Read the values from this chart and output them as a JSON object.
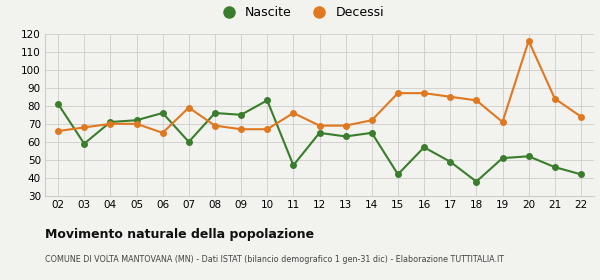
{
  "years": [
    "02",
    "03",
    "04",
    "05",
    "06",
    "07",
    "08",
    "09",
    "10",
    "11",
    "12",
    "13",
    "14",
    "15",
    "16",
    "17",
    "18",
    "19",
    "20",
    "21",
    "22"
  ],
  "nascite": [
    81,
    59,
    71,
    72,
    76,
    60,
    76,
    75,
    83,
    47,
    65,
    63,
    65,
    42,
    57,
    49,
    38,
    51,
    52,
    46,
    42
  ],
  "decessi": [
    66,
    68,
    70,
    70,
    65,
    79,
    69,
    67,
    67,
    76,
    69,
    69,
    72,
    87,
    87,
    85,
    83,
    71,
    116,
    84,
    74
  ],
  "nascite_color": "#3a7d2c",
  "decessi_color": "#e07820",
  "background_color": "#f2f2ee",
  "grid_color": "#cccccc",
  "title": "Movimento naturale della popolazione",
  "subtitle": "COMUNE DI VOLTA MANTOVANA (MN) - Dati ISTAT (bilancio demografico 1 gen-31 dic) - Elaborazione TUTTITALIA.IT",
  "legend_nascite": "Nascite",
  "legend_decessi": "Decessi",
  "ylim": [
    30,
    120
  ],
  "yticks": [
    30,
    40,
    50,
    60,
    70,
    80,
    90,
    100,
    110,
    120
  ],
  "marker_size": 4,
  "line_width": 1.5
}
